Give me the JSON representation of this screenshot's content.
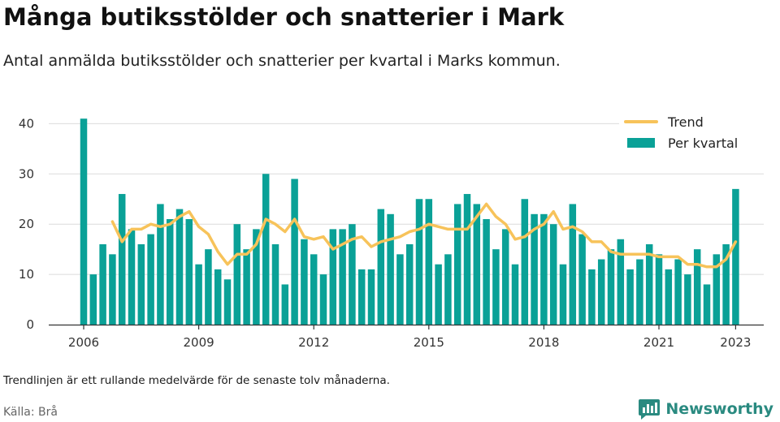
{
  "title": "Många butiksstölder och snatterier i Mark",
  "subtitle": "Antal anmälda butiksstölder och snatterier per kvartal i Marks kommun.",
  "note": "Trendlinjen är ett rullande medelvärde för de senaste tolv månaderna.",
  "source": "Källa: Brå",
  "brand": {
    "name": "Newsworthy",
    "logo_icon": "bar-chart-speech-icon"
  },
  "colors": {
    "bars": "#0aa197",
    "trend": "#f7c35a",
    "grid": "#dcdcdc",
    "axis": "#333333",
    "brand": "#2a8a80"
  },
  "chart_data": {
    "type": "bar",
    "x_start": "2006 Q1",
    "x_unit": "quarter",
    "x_ticks": [
      "2006",
      "2009",
      "2012",
      "2015",
      "2018",
      "2021",
      "2023"
    ],
    "y_ticks": [
      0,
      10,
      20,
      30,
      40
    ],
    "ylim": [
      0,
      42
    ],
    "grid": true,
    "legend_position": "top-right",
    "series": [
      {
        "name": "Per kvartal",
        "type": "bar",
        "values": [
          41,
          10,
          16,
          14,
          26,
          19,
          16,
          18,
          24,
          21,
          23,
          21,
          12,
          15,
          11,
          9,
          20,
          15,
          19,
          30,
          16,
          8,
          29,
          17,
          14,
          10,
          19,
          19,
          20,
          11,
          11,
          23,
          22,
          14,
          16,
          25,
          25,
          12,
          14,
          24,
          26,
          24,
          21,
          15,
          19,
          12,
          25,
          22,
          22,
          20,
          12,
          24,
          18,
          11,
          13,
          15,
          17,
          11,
          13,
          16,
          14,
          11,
          13,
          10,
          15,
          8,
          14,
          16,
          27
        ]
      },
      {
        "name": "Trend",
        "type": "line",
        "values": [
          null,
          null,
          null,
          20.5,
          16.5,
          19,
          19,
          20,
          19.5,
          20,
          21.5,
          22.5,
          19.5,
          18,
          14.5,
          12,
          14,
          14,
          16,
          21,
          20,
          18.5,
          21,
          17.5,
          17,
          17.5,
          15,
          16,
          17,
          17.5,
          15.5,
          16.5,
          17,
          17.5,
          18.5,
          19,
          20,
          19.5,
          19,
          19,
          19,
          21.5,
          24,
          21.5,
          20,
          17,
          17.5,
          19,
          20,
          22.5,
          19,
          19.5,
          18.5,
          16.5,
          16.5,
          14.5,
          14,
          14,
          14,
          14,
          13.5,
          13.5,
          13.5,
          12,
          12,
          11.5,
          11.5,
          13,
          16.5
        ]
      }
    ]
  }
}
